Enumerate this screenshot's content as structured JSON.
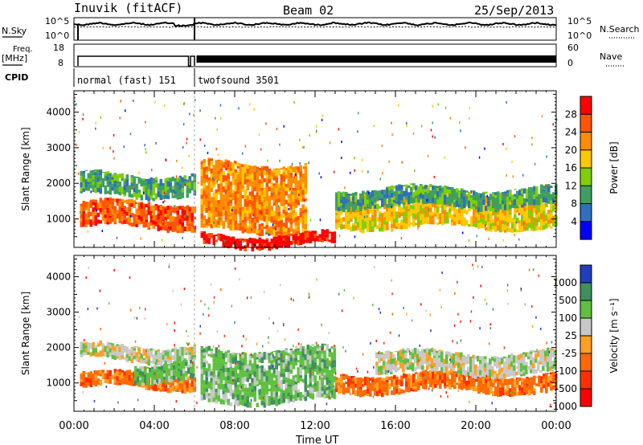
{
  "header": {
    "station": "Inuvik (fitACF)",
    "beam": "Beam 02",
    "date": "25/Sep/2013"
  },
  "status_panels": {
    "nsky_label": "N.Sky",
    "nsearch_label": "N.Search",
    "freq_label": [
      "Freq.",
      "[MHz]"
    ],
    "nave_label": "Nave",
    "cpid_label": "CPID",
    "nsky_ticks": [
      "10^5",
      "10^0"
    ],
    "nsearch_ticks": [
      "10^5",
      "10^0"
    ],
    "freq_ticks": [
      "18",
      "8"
    ],
    "nave_ticks": [
      "60",
      "0"
    ],
    "cpid_segments": [
      {
        "name": "normal (fast) 151",
        "start_hour": 0.0,
        "end_hour": 6.0
      },
      {
        "name": "twofsound 3501",
        "start_hour": 6.0,
        "end_hour": 24.0
      }
    ]
  },
  "colorbars": {
    "power": {
      "title": "Power [dB]",
      "tick_labels": [
        "28",
        "24",
        "20",
        "16",
        "12",
        "8",
        "4"
      ],
      "colors": [
        "#ff0000",
        "#ff5500",
        "#ff8c00",
        "#ffc800",
        "#7fd000",
        "#3f9f5f",
        "#2f6fbf",
        "#0000ff"
      ]
    },
    "velocity": {
      "title": "Velocity [m s⁻¹]",
      "tick_labels": [
        "1000",
        "500",
        "100",
        "25",
        "-25",
        "-100",
        "-500",
        "-1000"
      ],
      "colors": [
        "#1f3fbf",
        "#3f8f5f",
        "#5fc040",
        "#c8c8c8",
        "#ffa020",
        "#ff6a00",
        "#ff3000",
        "#ff0000"
      ]
    }
  },
  "chart_data": [
    {
      "type": "heatmap",
      "ylabel": "Slant Range [km]",
      "colorbar_label": "Power [dB]",
      "y_ticks": [
        1000,
        2000,
        3000,
        4000
      ],
      "ylim": [
        200,
        4600
      ],
      "xlim": [
        0,
        24
      ],
      "bands": [
        {
          "start_hour": 0.3,
          "end_hour": 6.0,
          "range_min": 700,
          "range_max": 1500,
          "power_db": 26
        },
        {
          "start_hour": 0.3,
          "end_hour": 6.0,
          "range_min": 1600,
          "range_max": 2300,
          "power_db": 8
        },
        {
          "start_hour": 6.3,
          "end_hour": 11.5,
          "range_min": 600,
          "range_max": 2600,
          "power_db": 22
        },
        {
          "start_hour": 6.3,
          "end_hour": 13.0,
          "range_min": 200,
          "range_max": 600,
          "power_db": 28
        },
        {
          "start_hour": 13.0,
          "end_hour": 24.0,
          "range_min": 700,
          "range_max": 1700,
          "power_db": 16
        },
        {
          "start_hour": 13.0,
          "end_hour": 24.0,
          "range_min": 1300,
          "range_max": 1900,
          "power_db": 8
        }
      ]
    },
    {
      "type": "heatmap",
      "ylabel": "Slant Range [km]",
      "colorbar_label": "Velocity [m s⁻¹]",
      "y_ticks": [
        1000,
        2000,
        3000,
        4000
      ],
      "ylim": [
        200,
        4600
      ],
      "xlim": [
        0,
        24
      ],
      "bands": [
        {
          "start_hour": 0.3,
          "end_hour": 6.0,
          "range_min": 800,
          "range_max": 1300,
          "velocity_ms": -100
        },
        {
          "start_hour": 0.3,
          "end_hour": 6.0,
          "range_min": 1600,
          "range_max": 2100,
          "velocity_ms": 25
        },
        {
          "start_hour": 3.0,
          "end_hour": 6.0,
          "range_min": 1000,
          "range_max": 1600,
          "velocity_ms": 300
        },
        {
          "start_hour": 6.3,
          "end_hour": 13.0,
          "range_min": 400,
          "range_max": 2000,
          "velocity_ms": 300
        },
        {
          "start_hour": 13.0,
          "end_hour": 24.0,
          "range_min": 700,
          "range_max": 1300,
          "velocity_ms": -100
        },
        {
          "start_hour": 15.0,
          "end_hour": 24.0,
          "range_min": 1200,
          "range_max": 1900,
          "velocity_ms": 25
        }
      ]
    }
  ],
  "x_axis": {
    "ticks": [
      "00:00",
      "04:00",
      "08:00",
      "12:00",
      "16:00",
      "20:00",
      "00:00"
    ],
    "label": "Time UT"
  }
}
